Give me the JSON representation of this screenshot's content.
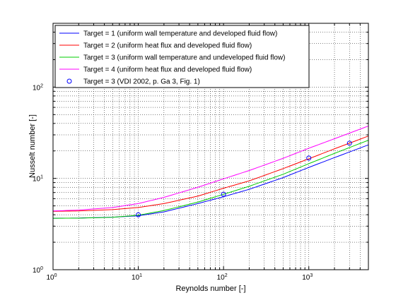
{
  "chart_data": {
    "type": "line",
    "xscale": "log",
    "yscale": "log",
    "xlim": [
      1,
      5000
    ],
    "ylim": [
      1,
      500
    ],
    "xlabel": "Reynolds number [-]",
    "ylabel": "Nusselt number [-]",
    "x_ticks": [
      {
        "base": "10",
        "exp": "0"
      },
      {
        "base": "10",
        "exp": "1"
      },
      {
        "base": "10",
        "exp": "2"
      },
      {
        "base": "10",
        "exp": "3"
      }
    ],
    "y_ticks": [
      {
        "base": "10",
        "exp": "0"
      },
      {
        "base": "10",
        "exp": "1"
      },
      {
        "base": "10",
        "exp": "2"
      }
    ],
    "grid": true,
    "legend_position": "top-left",
    "series": [
      {
        "name": "Target = 1 (uniform wall temperature and developed fluid flow)",
        "color": "#0000ff",
        "style": "line",
        "x": [
          1,
          2,
          5,
          10,
          20,
          50,
          100,
          200,
          500,
          1000,
          2000,
          5000
        ],
        "y": [
          3.66,
          3.68,
          3.76,
          3.9,
          4.3,
          5.3,
          6.3,
          7.6,
          10.2,
          13.2,
          16.9,
          23.3
        ]
      },
      {
        "name": "Target = 2 (uniform heat flux and developed fluid flow)",
        "color": "#ff0000",
        "style": "line",
        "x": [
          1,
          2,
          5,
          10,
          20,
          50,
          100,
          200,
          500,
          1000,
          2000,
          5000
        ],
        "y": [
          4.36,
          4.4,
          4.55,
          4.8,
          5.3,
          6.4,
          7.8,
          9.4,
          12.8,
          16.4,
          21.1,
          29.1
        ]
      },
      {
        "name": "Target = 3 (uniform wall temperature and undeveloped fluid flow)",
        "color": "#00cc00",
        "style": "line",
        "x": [
          1,
          2,
          5,
          10,
          20,
          50,
          100,
          200,
          500,
          1000,
          2000,
          5000
        ],
        "y": [
          3.66,
          3.67,
          3.75,
          3.95,
          4.45,
          5.5,
          6.7,
          8.2,
          11.1,
          14.5,
          18.8,
          26.2
        ]
      },
      {
        "name": "Target = 4 (uniform heat flux and developed fluid flow)",
        "color": "#ff00ff",
        "style": "line",
        "x": [
          1,
          2,
          5,
          10,
          20,
          50,
          100,
          200,
          500,
          1000,
          2000,
          5000
        ],
        "y": [
          4.4,
          4.5,
          4.8,
          5.3,
          6.2,
          8.0,
          9.9,
          12.2,
          16.6,
          21.4,
          27.2,
          37.5
        ]
      },
      {
        "name": "Target = 3 (VDI 2002, p. Ga 3, Fig. 1)",
        "color": "#0000ff",
        "style": "markers",
        "x": [
          10,
          100,
          1000,
          3000
        ],
        "y": [
          3.99,
          6.7,
          16.7,
          24.3
        ]
      }
    ]
  }
}
